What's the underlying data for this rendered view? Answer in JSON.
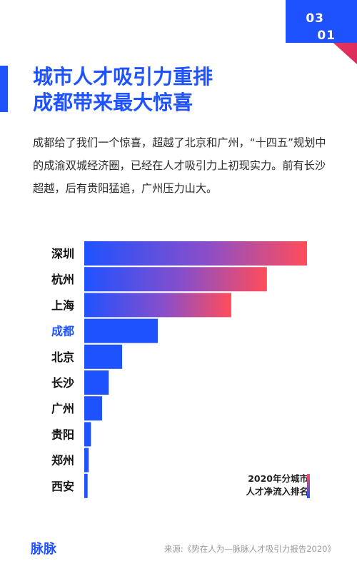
{
  "page_number": {
    "top": "03",
    "bottom": "01"
  },
  "title": {
    "line1": "城市人才吸引力重排",
    "line2": "成都带来最大惊喜"
  },
  "intro": "成都给了我们一个惊喜，超越了北京和广州，“十四五”规划中的成渝双城经济圈，已经在人才吸引力上初现实力。前有长沙超越，后有贵阳猛追，广州压力山大。",
  "chart_data": {
    "type": "bar",
    "orientation": "horizontal",
    "categories": [
      "深圳",
      "杭州",
      "上海",
      "成都",
      "北京",
      "长沙",
      "广州",
      "贵阳",
      "郑州",
      "西安"
    ],
    "values": [
      100,
      82,
      66,
      33,
      17,
      11,
      8,
      3,
      2,
      1.5
    ],
    "highlight": "成都",
    "highlight_color": "#1f52ff",
    "legend": {
      "line1": "2020年分城市",
      "line2": "人才净流入排名"
    },
    "colors": {
      "blue": "#1f52ff",
      "red": "#ff4d5a"
    }
  },
  "brand": "脉脉",
  "source": "来源:《势在人为—脉脉人才吸引力报告2020》"
}
